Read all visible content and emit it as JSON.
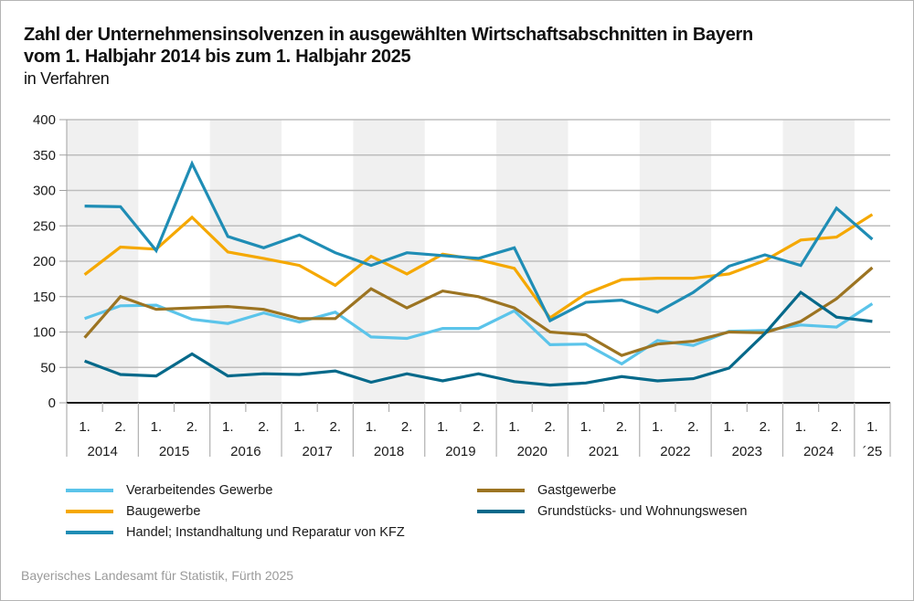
{
  "header": {
    "title_line1": "Zahl der Unternehmensinsolvenzen in ausgewählten Wirtschaftsabschnitten in Bayern",
    "title_line2": "vom 1. Halbjahr 2014 bis zum 1. Halbjahr 2025",
    "subtitle": "in Verfahren"
  },
  "source": "Bayerisches Landesamt für Statistik, Fürth 2025",
  "chart_data": {
    "type": "line",
    "title": "Zahl der Unternehmensinsolvenzen in ausgewählten Wirtschaftsabschnitten in Bayern vom 1. Halbjahr 2014 bis zum 1. Halbjahr 2025",
    "ylabel": "in Verfahren",
    "xlabel": "",
    "ylim": [
      0,
      400
    ],
    "yticks": [
      0,
      50,
      100,
      150,
      200,
      250,
      300,
      350,
      400
    ],
    "grid": true,
    "legend_position": "bottom",
    "x": [
      "2014 H1",
      "2014 H2",
      "2015 H1",
      "2015 H2",
      "2016 H1",
      "2016 H2",
      "2017 H1",
      "2017 H2",
      "2018 H1",
      "2018 H2",
      "2019 H1",
      "2019 H2",
      "2020 H1",
      "2020 H2",
      "2021 H1",
      "2021 H2",
      "2022 H1",
      "2022 H2",
      "2023 H1",
      "2023 H2",
      "2024 H1",
      "2024 H2",
      "2025 H1"
    ],
    "half_labels": [
      "1.",
      "2.",
      "1.",
      "2.",
      "1.",
      "2.",
      "1.",
      "2.",
      "1.",
      "2.",
      "1.",
      "2.",
      "1.",
      "2.",
      "1.",
      "2.",
      "1.",
      "2.",
      "1.",
      "2.",
      "1.",
      "2.",
      "1."
    ],
    "year_labels": [
      "2014",
      "2015",
      "2016",
      "2017",
      "2018",
      "2019",
      "2020",
      "2021",
      "2022",
      "2023",
      "2024",
      "´25"
    ],
    "series": [
      {
        "name": "Verarbeitendes Gewerbe",
        "color": "#5bc4ea",
        "values": [
          119,
          137,
          138,
          118,
          112,
          127,
          114,
          128,
          93,
          91,
          105,
          105,
          130,
          82,
          83,
          55,
          88,
          81,
          101,
          102,
          110,
          107,
          140
        ]
      },
      {
        "name": "Baugewerbe",
        "color": "#f5a800",
        "values": [
          181,
          220,
          217,
          262,
          213,
          204,
          194,
          166,
          207,
          182,
          210,
          202,
          190,
          120,
          154,
          174,
          176,
          176,
          182,
          201,
          230,
          234,
          266
        ]
      },
      {
        "name": "Handel; Instandhaltung und Reparatur von KFZ",
        "color": "#1f8db5",
        "values": [
          278,
          277,
          215,
          338,
          235,
          219,
          237,
          212,
          194,
          212,
          208,
          204,
          219,
          116,
          142,
          145,
          128,
          156,
          193,
          209,
          194,
          275,
          231
        ]
      },
      {
        "name": "Gastgewerbe",
        "color": "#9c7422",
        "values": [
          92,
          150,
          132,
          134,
          136,
          132,
          119,
          119,
          161,
          134,
          158,
          150,
          134,
          100,
          96,
          67,
          83,
          87,
          100,
          99,
          115,
          147,
          191
        ]
      },
      {
        "name": "Grundstücks- und Wohnungswesen",
        "color": "#05698a",
        "values": [
          59,
          40,
          38,
          69,
          38,
          41,
          40,
          45,
          29,
          41,
          31,
          41,
          30,
          25,
          28,
          37,
          31,
          34,
          49,
          98,
          156,
          121,
          115
        ]
      }
    ]
  },
  "legend": [
    {
      "label": "Verarbeitendes Gewerbe",
      "color": "#5bc4ea"
    },
    {
      "label": "Baugewerbe",
      "color": "#f5a800"
    },
    {
      "label": "Handel; Instandhaltung und Reparatur von KFZ",
      "color": "#1f8db5"
    },
    {
      "label": "Gastgewerbe",
      "color": "#9c7422"
    },
    {
      "label": "Grundstücks- und Wohnungswesen",
      "color": "#05698a"
    }
  ]
}
